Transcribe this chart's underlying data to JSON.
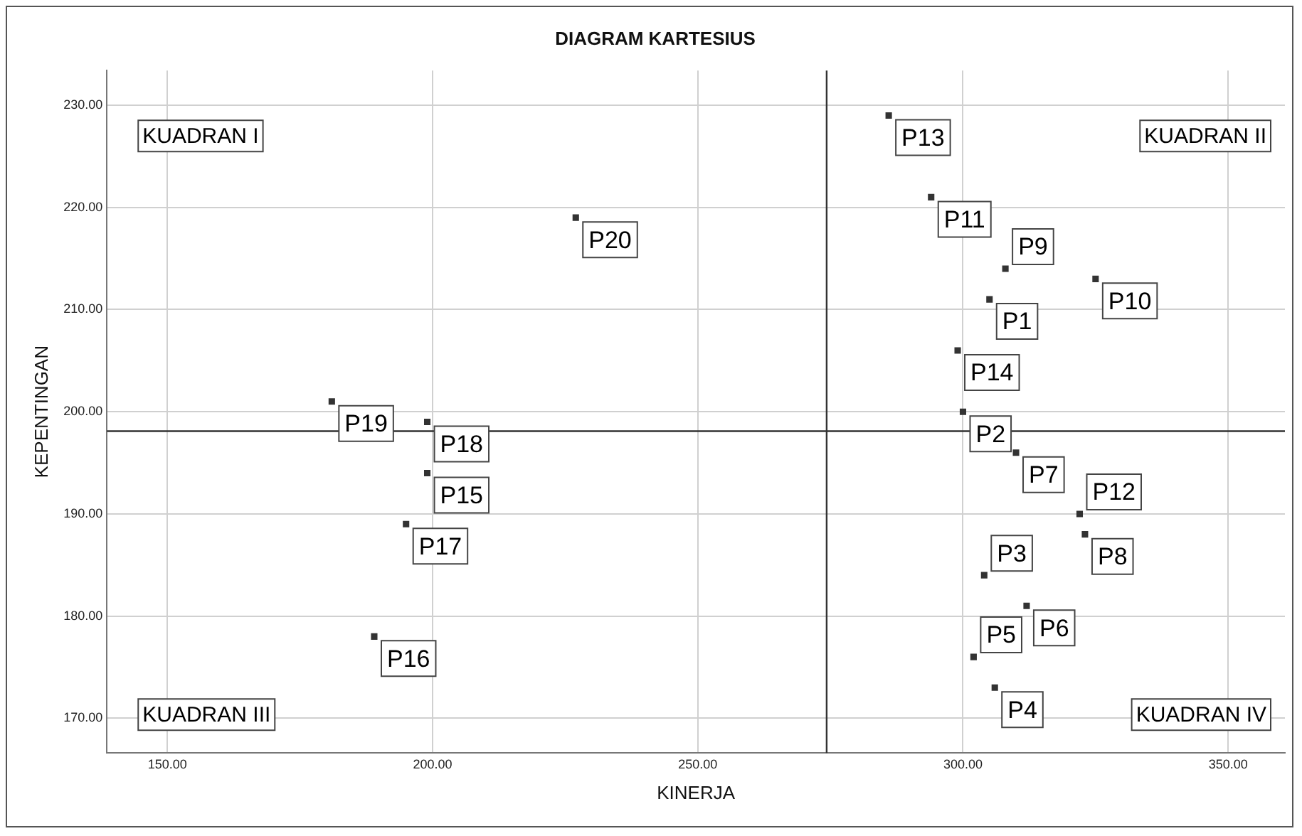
{
  "chart_data": {
    "type": "scatter",
    "title": "DIAGRAM KARTESIUS",
    "xlabel": "KINERJA",
    "ylabel": "KEPENTINGAN",
    "series": [
      {
        "color": "#333333",
        "x": [
          305,
          300,
          304,
          306,
          302,
          312,
          310,
          323,
          308,
          325,
          294,
          322,
          286,
          299,
          199,
          189,
          195,
          199,
          181,
          227
        ],
        "values": [
          211,
          200,
          184,
          173,
          176,
          181,
          196,
          188,
          214,
          213,
          221,
          190,
          229,
          206,
          194,
          178,
          189,
          199,
          201,
          219
        ]
      }
    ],
    "annotations": [
      "KUADRAN I",
      "KUADRAN II",
      "KUADRAN III",
      "KUADRAN IV",
      {
        "text": "P1",
        "x": 305,
        "y": 211
      },
      {
        "text": "P2",
        "x": 300,
        "y": 200
      },
      {
        "text": "P3",
        "x": 304,
        "y": 184
      },
      {
        "text": "P4",
        "x": 306,
        "y": 173
      },
      {
        "text": "P5",
        "x": 302,
        "y": 176
      },
      {
        "text": "P6",
        "x": 312,
        "y": 181
      },
      {
        "text": "P7",
        "x": 310,
        "y": 196
      },
      {
        "text": "P8",
        "x": 323,
        "y": 188
      },
      {
        "text": "P9",
        "x": 308,
        "y": 214
      },
      {
        "text": "P10",
        "x": 325,
        "y": 213
      },
      {
        "text": "P11",
        "x": 294,
        "y": 221
      },
      {
        "text": "P12",
        "x": 322,
        "y": 190
      },
      {
        "text": "P13",
        "x": 286,
        "y": 229
      },
      {
        "text": "P14",
        "x": 299,
        "y": 206
      },
      {
        "text": "P15",
        "x": 199,
        "y": 194
      },
      {
        "text": "P16",
        "x": 189,
        "y": 178
      },
      {
        "text": "P17",
        "x": 195,
        "y": 189
      },
      {
        "text": "P18",
        "x": 199,
        "y": 199
      },
      {
        "text": "P19",
        "x": 181,
        "y": 201
      },
      {
        "text": "P20",
        "x": 227,
        "y": 219
      }
    ],
    "ref_lines": [
      {
        "axis": "x",
        "value": 274.3,
        "color": "#333333"
      },
      {
        "axis": "y",
        "value": 198.1,
        "color": "#333333"
      }
    ],
    "xlim": [
      138.6,
      360.7
    ],
    "ylim": [
      166.6,
      233.4
    ],
    "xticks": [
      {
        "value": 150,
        "label": "150.00"
      },
      {
        "value": 200,
        "label": "200.00"
      },
      {
        "value": 250,
        "label": "250.00"
      },
      {
        "value": 300,
        "label": "300.00"
      },
      {
        "value": 350,
        "label": "350.00"
      }
    ],
    "yticks": [
      {
        "value": 170,
        "label": "170.00"
      },
      {
        "value": 180,
        "label": "180.00"
      },
      {
        "value": 190,
        "label": "190.00"
      },
      {
        "value": 200,
        "label": "200.00"
      },
      {
        "value": 210,
        "label": "210.00"
      },
      {
        "value": 220,
        "label": "220.00"
      },
      {
        "value": 230,
        "label": "230.00"
      }
    ],
    "grid": true,
    "legend": false,
    "marker": "square"
  }
}
